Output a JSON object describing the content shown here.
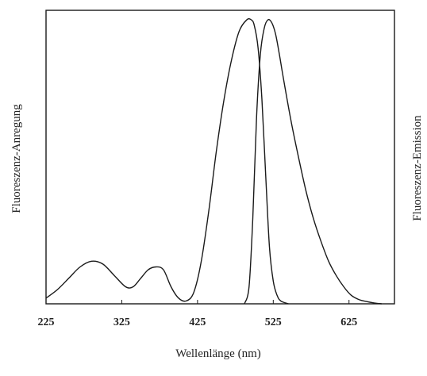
{
  "chart_data": {
    "type": "line",
    "title": "",
    "xlabel": "Wellenlänge (nm)",
    "ylabel_left": "Fluoreszenz-Anregung",
    "ylabel_right": "Fluoreszenz-Emission",
    "xlim": [
      225,
      685
    ],
    "ylim": [
      0,
      1
    ],
    "x_ticks": [
      225,
      325,
      425,
      525,
      625
    ],
    "x_tick_labels": [
      "225",
      "325",
      "425",
      "525",
      "625"
    ],
    "grid": false,
    "legend": "none",
    "series": [
      {
        "x": [
          225,
          240,
          255,
          270,
          285,
          300,
          315,
          330,
          340,
          350,
          360,
          370,
          380,
          390,
          400,
          410,
          420,
          430,
          440,
          450,
          460,
          470,
          480,
          490,
          496,
          500,
          505,
          510,
          515,
          520,
          525,
          530,
          535,
          545
        ],
        "values": [
          0.02,
          0.05,
          0.09,
          0.13,
          0.15,
          0.14,
          0.1,
          0.06,
          0.06,
          0.09,
          0.12,
          0.13,
          0.12,
          0.06,
          0.02,
          0.01,
          0.04,
          0.15,
          0.33,
          0.54,
          0.72,
          0.86,
          0.96,
          1.0,
          1.0,
          0.98,
          0.9,
          0.72,
          0.45,
          0.2,
          0.08,
          0.03,
          0.01,
          0.0
        ],
        "color": "#1a1a1a"
      },
      {
        "x": [
          487,
          493,
          498,
          503,
          508,
          513,
          518,
          523,
          528,
          533,
          538,
          548,
          558,
          568,
          578,
          588,
          598,
          608,
          618,
          628,
          638,
          648,
          658,
          668
        ],
        "values": [
          0.0,
          0.06,
          0.3,
          0.66,
          0.88,
          0.97,
          1.0,
          0.99,
          0.95,
          0.88,
          0.8,
          0.65,
          0.52,
          0.4,
          0.3,
          0.22,
          0.15,
          0.1,
          0.06,
          0.03,
          0.015,
          0.008,
          0.003,
          0.0
        ],
        "color": "#1a1a1a"
      }
    ]
  }
}
